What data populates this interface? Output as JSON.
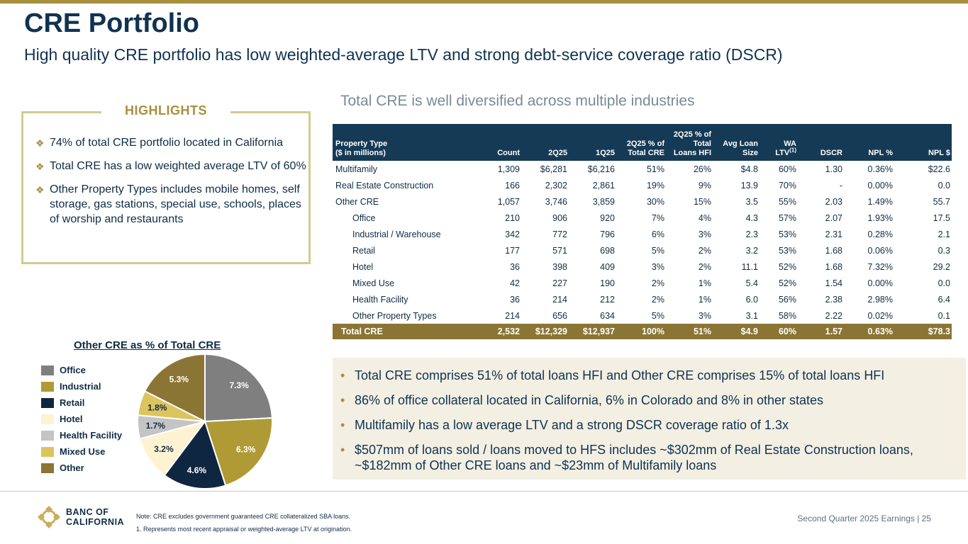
{
  "slide": {
    "title": "CRE Portfolio",
    "subtitle": "High quality CRE portfolio has low weighted-average LTV and strong debt-service coverage ratio (DSCR)"
  },
  "highlights": {
    "title": "HIGHLIGHTS",
    "items": [
      "74% of total CRE portfolio located in California",
      "Total CRE has a low weighted average LTV of 60%",
      "Other Property Types includes mobile homes, self storage, gas stations, special use, schools, places of worship and restaurants"
    ]
  },
  "table": {
    "heading": "Total CRE is well diversified across multiple industries",
    "headers": {
      "property_type_1": "Property Type",
      "property_type_2": "($ in millions)",
      "count": "Count",
      "q2": "2Q25",
      "q1": "1Q25",
      "pct_cre_1": "2Q25 % of",
      "pct_cre_2": "Total CRE",
      "pct_loans_1": "2Q25 % of",
      "pct_loans_2": "Total",
      "pct_loans_3": "Loans HFI",
      "avg_loan_1": "Avg Loan",
      "avg_loan_2": "Size",
      "wa_1": "WA",
      "wa_2": "LTV",
      "wa_sup": "(1)",
      "dscr": "DSCR",
      "npl_pct": "NPL %",
      "npl_amt": "NPL $"
    },
    "rows": [
      [
        "Multifamily",
        "1,309",
        "$6,281",
        "$6,216",
        "51%",
        "26%",
        "$4.8",
        "60%",
        "1.30",
        "0.36%",
        "$22.6"
      ],
      [
        "Real Estate Construction",
        "166",
        "2,302",
        "2,861",
        "19%",
        "9%",
        "13.9",
        "70%",
        "-",
        "0.00%",
        "0.0"
      ],
      [
        "Other CRE",
        "1,057",
        "3,746",
        "3,859",
        "30%",
        "15%",
        "3.5",
        "55%",
        "2.03",
        "1.49%",
        "55.7"
      ],
      [
        "Office",
        "210",
        "906",
        "920",
        "7%",
        "4%",
        "4.3",
        "57%",
        "2.07",
        "1.93%",
        "17.5"
      ],
      [
        "Industrial / Warehouse",
        "342",
        "772",
        "796",
        "6%",
        "3%",
        "2.3",
        "53%",
        "2.31",
        "0.28%",
        "2.1"
      ],
      [
        "Retail",
        "177",
        "571",
        "698",
        "5%",
        "2%",
        "3.2",
        "53%",
        "1.68",
        "0.06%",
        "0.3"
      ],
      [
        "Hotel",
        "36",
        "398",
        "409",
        "3%",
        "2%",
        "11.1",
        "52%",
        "1.68",
        "7.32%",
        "29.2"
      ],
      [
        "Mixed Use",
        "42",
        "227",
        "190",
        "2%",
        "1%",
        "5.4",
        "52%",
        "1.54",
        "0.00%",
        "0.0"
      ],
      [
        "Health Facility",
        "36",
        "214",
        "212",
        "2%",
        "1%",
        "6.0",
        "56%",
        "2.38",
        "2.98%",
        "6.4"
      ],
      [
        "Other Property Types",
        "214",
        "656",
        "634",
        "5%",
        "3%",
        "3.1",
        "58%",
        "2.22",
        "0.02%",
        "0.1"
      ]
    ],
    "total": [
      "Total CRE",
      "2,532",
      "$12,329",
      "$12,937",
      "100%",
      "51%",
      "$4.9",
      "60%",
      "1.57",
      "0.63%",
      "$78.3"
    ]
  },
  "pie": {
    "title": "Other CRE as % of Total CRE",
    "legend": [
      "Office",
      "Industrial",
      "Retail",
      "Hotel",
      "Health Facility",
      "Mixed Use",
      "Other"
    ],
    "colors": [
      "#7f7f7f",
      "#b09a35",
      "#0f2640",
      "#fdf3d2",
      "#c4c4c4",
      "#dcc45e",
      "#8a7534"
    ]
  },
  "chart_data": {
    "type": "pie",
    "title": "Other CRE as % of Total CRE",
    "categories": [
      "Office",
      "Industrial",
      "Retail",
      "Hotel",
      "Health Facility",
      "Mixed Use",
      "Other"
    ],
    "values": [
      7.3,
      6.3,
      4.6,
      3.2,
      1.7,
      1.8,
      5.3
    ],
    "labels": [
      "7.3%",
      "6.3%",
      "4.6%",
      "3.2%",
      "1.7%",
      "1.8%",
      "5.3%"
    ],
    "label_colors": [
      "#ffffff",
      "#ffffff",
      "#ffffff",
      "#0f2c45",
      "#0f2c45",
      "#0f2c45",
      "#ffffff"
    ]
  },
  "bullets": [
    "Total CRE comprises 51% of total loans HFI and Other CRE comprises 15% of total loans HFI",
    "86% of office collateral located in California, 6% in Colorado and 8% in other states",
    "Multifamily has a low average LTV and a strong DSCR coverage ratio of 1.3x",
    "$507mm of loans sold / loans moved to HFS includes ~$302mm of Real Estate Construction loans, ~$182mm of Other CRE loans and ~$23mm of Multifamily loans"
  ],
  "footer": {
    "logo_line1": "BANC OF",
    "logo_line2": "CALIFORNIA",
    "note1": "Note: CRE excludes government guaranteed CRE collateralized SBA loans.",
    "note2": "1.  Represents most recent appraisal or weighted-average LTV at origination.",
    "right": "Second Quarter 2025 Earnings |  25"
  },
  "colors": {
    "navy": "#153a55",
    "gold": "#a89040",
    "total_row": "#8a7534",
    "bullet_bg": "#f3efe3"
  }
}
